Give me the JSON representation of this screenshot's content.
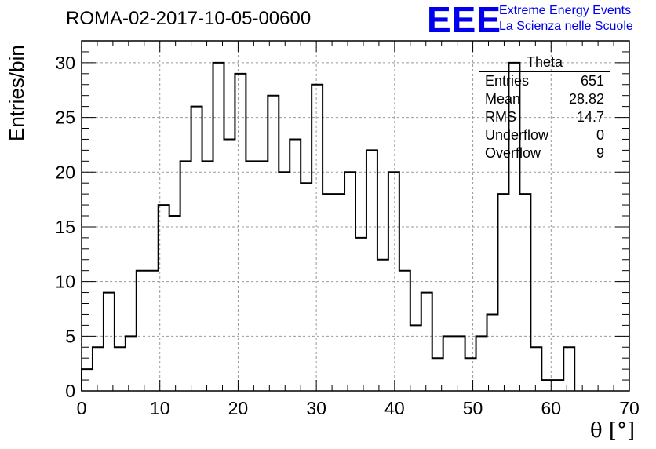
{
  "run_title": "ROMA-02-2017-10-05-00600",
  "logo": {
    "mark": "EEE",
    "line1": "Extreme Energy Events",
    "line2": "La Scienza nelle Scuole",
    "color": "#0000ee"
  },
  "stats_box": {
    "title": "Theta",
    "rows": [
      {
        "label": "Entries",
        "value": "651"
      },
      {
        "label": "Mean",
        "value": "28.82"
      },
      {
        "label": "RMS",
        "value": "14.7"
      },
      {
        "label": "Underflow",
        "value": "0"
      },
      {
        "label": "Overflow",
        "value": "9"
      }
    ]
  },
  "chart_data": {
    "type": "bar",
    "histogram": true,
    "title": "ROMA-02-2017-10-05-00600",
    "xlabel": "θ [°]",
    "ylabel": "Entries/bin",
    "xlim": [
      0,
      70
    ],
    "ylim": [
      0,
      32
    ],
    "grid": true,
    "bin_width": 1.4,
    "bin_edges_start": 0,
    "values": [
      2,
      4,
      9,
      4,
      5,
      11,
      11,
      17,
      16,
      21,
      26,
      21,
      30,
      23,
      29,
      21,
      21,
      27,
      20,
      23,
      19,
      28,
      18,
      18,
      20,
      14,
      22,
      12,
      20,
      11,
      6,
      9,
      3,
      5,
      5,
      3,
      5,
      7,
      18,
      30,
      18,
      4,
      1,
      1,
      4
    ],
    "x_ticks": [
      "0",
      "10",
      "20",
      "30",
      "40",
      "50",
      "60",
      "70"
    ],
    "x_tick_values": [
      0,
      10,
      20,
      30,
      40,
      50,
      60,
      70
    ],
    "y_ticks": [
      "0",
      "5",
      "10",
      "15",
      "20",
      "25",
      "30"
    ],
    "y_tick_values": [
      0,
      5,
      10,
      15,
      20,
      25,
      30
    ]
  }
}
